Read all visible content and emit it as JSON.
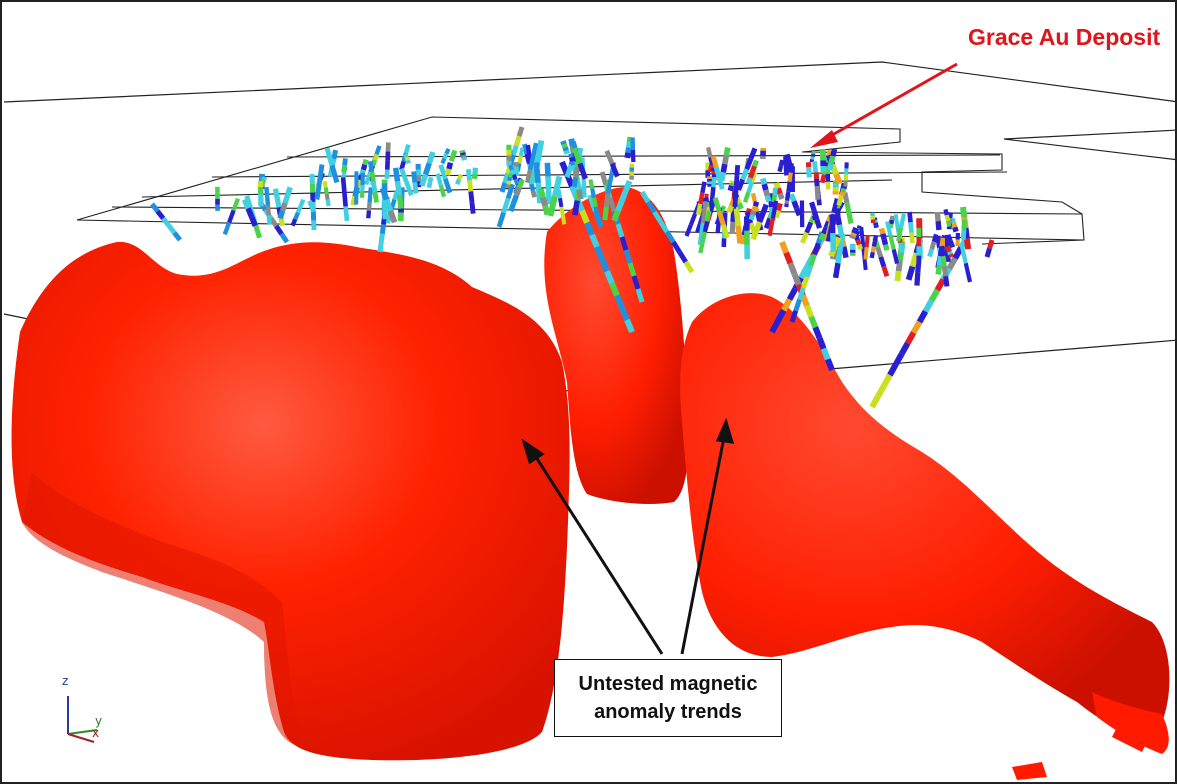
{
  "labels": {
    "deposit": "Grace Au Deposit",
    "callout_line1": "Untested magnetic",
    "callout_line2": "anomaly trends"
  },
  "axes": {
    "z": "z",
    "y": "y",
    "x": "x"
  },
  "colors": {
    "anomaly_red": "#ff1a00",
    "deposit_label": "#e0141b",
    "plane_outline": "#222222"
  },
  "drillhole_palette": [
    "#2a1fd0",
    "#1f8fe0",
    "#40d0e0",
    "#4ad34a",
    "#c8e020",
    "#f0a020",
    "#e02020",
    "#8a8a8a"
  ]
}
